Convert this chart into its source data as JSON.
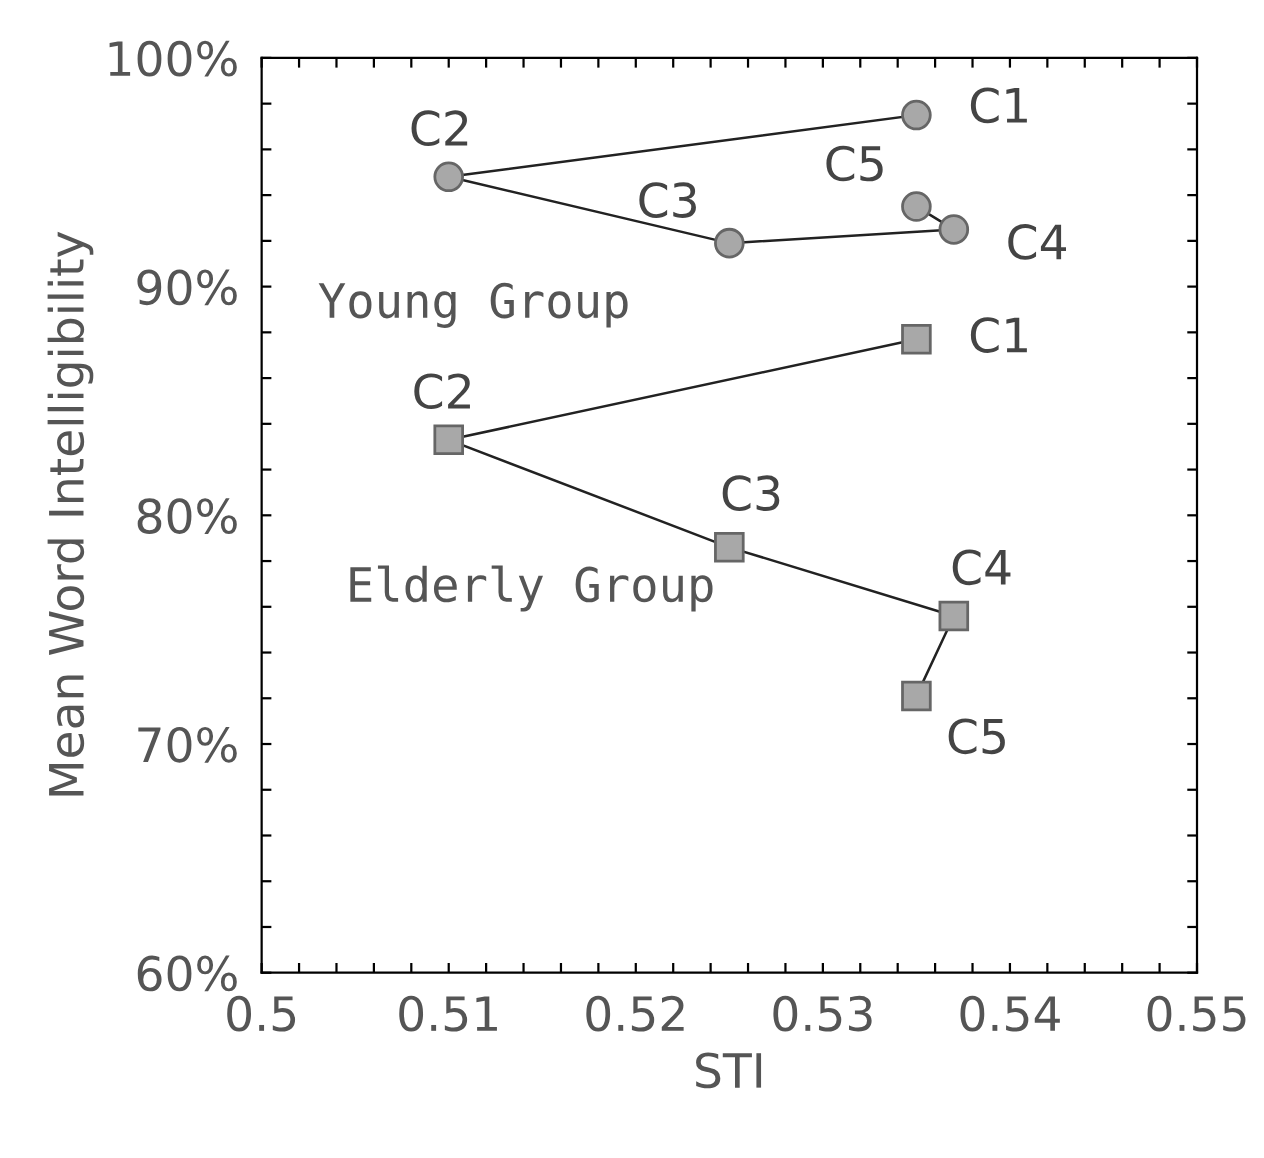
{
  "chart_data": {
    "type": "line",
    "xlabel": "STI",
    "ylabel": "Mean Word Intelligibility",
    "xlim": [
      0.5,
      0.55
    ],
    "xticks": [
      0.5,
      {
        "value": 0.502,
        "label": null
      },
      {
        "value": 0.504,
        "label": null
      },
      {
        "value": 0.506,
        "label": null
      },
      {
        "value": 0.508,
        "label": null
      },
      0.51,
      {
        "value": 0.512,
        "label": null
      },
      {
        "value": 0.514,
        "label": null
      },
      {
        "value": 0.516,
        "label": null
      },
      {
        "value": 0.518,
        "label": null
      },
      0.52,
      {
        "value": 0.522,
        "label": null
      },
      {
        "value": 0.524,
        "label": null
      },
      {
        "value": 0.526,
        "label": null
      },
      {
        "value": 0.528,
        "label": null
      },
      0.53,
      {
        "value": 0.532,
        "label": null
      },
      {
        "value": 0.534,
        "label": null
      },
      {
        "value": 0.536,
        "label": null
      },
      {
        "value": 0.538,
        "label": null
      },
      0.54,
      {
        "value": 0.542,
        "label": null
      },
      {
        "value": 0.544,
        "label": null
      },
      {
        "value": 0.546,
        "label": null
      },
      {
        "value": 0.548,
        "label": null
      },
      0.55
    ],
    "ylim": [
      60,
      100
    ],
    "yticks": [
      {
        "value": 60,
        "label": "60%"
      },
      {
        "value": 62,
        "label": null
      },
      {
        "value": 64,
        "label": null
      },
      {
        "value": 66,
        "label": null
      },
      {
        "value": 68,
        "label": null
      },
      {
        "value": 70,
        "label": "70%"
      },
      {
        "value": 72,
        "label": null
      },
      {
        "value": 74,
        "label": null
      },
      {
        "value": 76,
        "label": null
      },
      {
        "value": 78,
        "label": null
      },
      {
        "value": 80,
        "label": "80%"
      },
      {
        "value": 82,
        "label": null
      },
      {
        "value": 84,
        "label": null
      },
      {
        "value": 86,
        "label": null
      },
      {
        "value": 88,
        "label": null
      },
      {
        "value": 90,
        "label": "90%"
      },
      {
        "value": 92,
        "label": null
      },
      {
        "value": 94,
        "label": null
      },
      {
        "value": 96,
        "label": null
      },
      {
        "value": 98,
        "label": null
      },
      {
        "value": 100,
        "label": "100%"
      }
    ],
    "grid": false,
    "legend": false,
    "series": [
      {
        "name": "Young Group",
        "color": "#a8a8a8",
        "marker": "circle",
        "x": [
          0.535,
          0.51,
          0.525,
          0.537,
          0.535
        ],
        "values": [
          97.5,
          94.8,
          91.9,
          92.5,
          93.5
        ]
      },
      {
        "name": "Elderly Group",
        "color": "#a8a8a8",
        "marker": "square",
        "x": [
          0.535,
          0.51,
          0.525,
          0.537,
          0.535
        ],
        "values": [
          87.7,
          83.3,
          78.6,
          75.6,
          72.1
        ]
      }
    ],
    "annotations": [
      {
        "text": "C1",
        "x": 0.535,
        "y": 97.5
      },
      {
        "text": "C2",
        "x": 0.51,
        "y": 94.8
      },
      {
        "text": "C3",
        "x": 0.525,
        "y": 91.9
      },
      {
        "text": "C4",
        "x": 0.537,
        "y": 92.5
      },
      {
        "text": "C5",
        "x": 0.535,
        "y": 93.5
      },
      {
        "text": "C1",
        "x": 0.535,
        "y": 87.7
      },
      {
        "text": "C2",
        "x": 0.51,
        "y": 83.3
      },
      {
        "text": "C3",
        "x": 0.525,
        "y": 78.6
      },
      {
        "text": "C4",
        "x": 0.537,
        "y": 75.6
      },
      {
        "text": "C5",
        "x": 0.535,
        "y": 72.1
      }
    ]
  }
}
